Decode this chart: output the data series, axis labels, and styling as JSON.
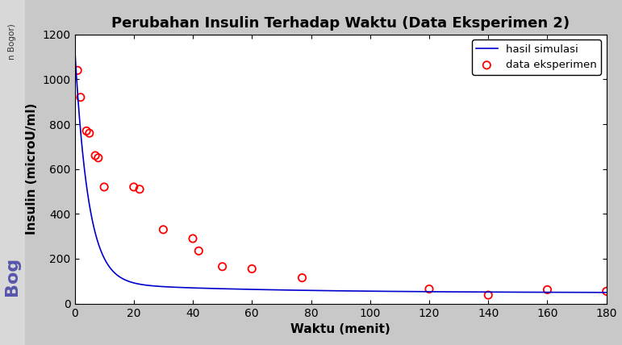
{
  "title": "Perubahan Insulin Terhadap Waktu (Data Eksperimen 2)",
  "xlabel": "Waktu (menit)",
  "ylabel": "Insulin (microU/ml)",
  "xlim": [
    0,
    180
  ],
  "ylim": [
    0,
    1200
  ],
  "xticks": [
    0,
    20,
    40,
    60,
    80,
    100,
    120,
    140,
    160,
    180
  ],
  "yticks": [
    0,
    200,
    400,
    600,
    800,
    1000,
    1200
  ],
  "exp_x": [
    1,
    2,
    4,
    5,
    7,
    8,
    10,
    20,
    22,
    30,
    40,
    42,
    50,
    60,
    77,
    120,
    140,
    160,
    180
  ],
  "exp_y": [
    1040,
    920,
    770,
    760,
    660,
    650,
    520,
    520,
    510,
    330,
    290,
    235,
    165,
    155,
    115,
    65,
    38,
    62,
    55
  ],
  "sim_a1": 1055,
  "sim_k1": 0.22,
  "sim_a2": 45,
  "sim_k2": 0.018,
  "sim_baseline": 48,
  "line_color": "#0000CC",
  "scatter_facecolor": "none",
  "scatter_edgecolor": "red",
  "legend_line": "hasil simulasi",
  "legend_scatter": "data eksperimen",
  "title_fontsize": 13,
  "axis_label_fontsize": 11,
  "tick_fontsize": 10,
  "fig_bg_color": "#c8c8c8",
  "plot_bg_color": "#ffffff",
  "left_strip_color": "#d8d8d8",
  "bogor_top_text": "n Bogor)",
  "bogor_bottom_text": "Bog",
  "scatter_size": 45,
  "scatter_linewidth": 1.3
}
